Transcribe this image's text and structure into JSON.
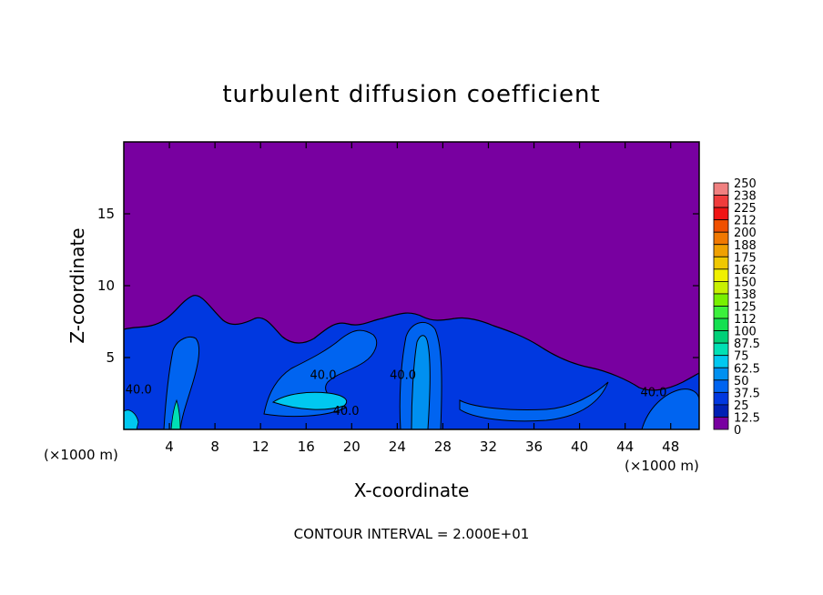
{
  "chart_data": {
    "type": "heatmap",
    "title": "turbulent diffusion coefficient",
    "xlabel": "X-coordinate",
    "ylabel": "Z-coordinate",
    "x_unit_left": "(×1000 m)",
    "x_unit_right": "(×1000 m)",
    "xlim": [
      0,
      50.5
    ],
    "ylim": [
      0,
      20
    ],
    "x_ticks": [
      "4",
      "8",
      "12",
      "16",
      "20",
      "24",
      "28",
      "32",
      "36",
      "40",
      "44",
      "48"
    ],
    "x_tick_values": [
      4,
      8,
      12,
      16,
      20,
      24,
      28,
      32,
      36,
      40,
      44,
      48
    ],
    "y_ticks": [
      "5",
      "10",
      "15"
    ],
    "y_tick_values": [
      5,
      10,
      15
    ],
    "footer": "CONTOUR INTERVAL = 2.000E+01",
    "contour_labels": [
      {
        "text": "40.0",
        "x": 1.3,
        "z": 2.5
      },
      {
        "text": "40.0",
        "x": 17.5,
        "z": 3.5
      },
      {
        "text": "40.0",
        "x": 19.5,
        "z": 1.0
      },
      {
        "text": "40.0",
        "x": 24.5,
        "z": 3.5
      },
      {
        "text": "40.0",
        "x": 46.5,
        "z": 2.3
      }
    ],
    "colorbar": {
      "labels": [
        "250",
        "238",
        "225",
        "212",
        "200",
        "188",
        "175",
        "162",
        "150",
        "138",
        "125",
        "112",
        "100",
        "87.5",
        "75",
        "62.5",
        "50",
        "37.5",
        "25",
        "12.5",
        "0"
      ],
      "colors": [
        "#f08080",
        "#f03c3c",
        "#f01414",
        "#f05000",
        "#f07800",
        "#f0a000",
        "#f0c800",
        "#f0f000",
        "#c8f000",
        "#78f000",
        "#3cf03c",
        "#14e050",
        "#00d078",
        "#00e0b4",
        "#00c8f0",
        "#0090f0",
        "#0064f0",
        "#0038e0",
        "#0020b4",
        "#7800a0"
      ]
    },
    "regions": [
      {
        "level": "0",
        "color": "#7800a0"
      },
      {
        "level": "25-37.5",
        "color": "#0038e0"
      },
      {
        "level": "37.5-50",
        "color": "#0064f0"
      },
      {
        "level": "50-62.5",
        "color": "#0090f0"
      },
      {
        "level": "62.5-75",
        "color": "#00c8f0"
      },
      {
        "level": "75-100",
        "color": "#00e0b4"
      }
    ]
  }
}
